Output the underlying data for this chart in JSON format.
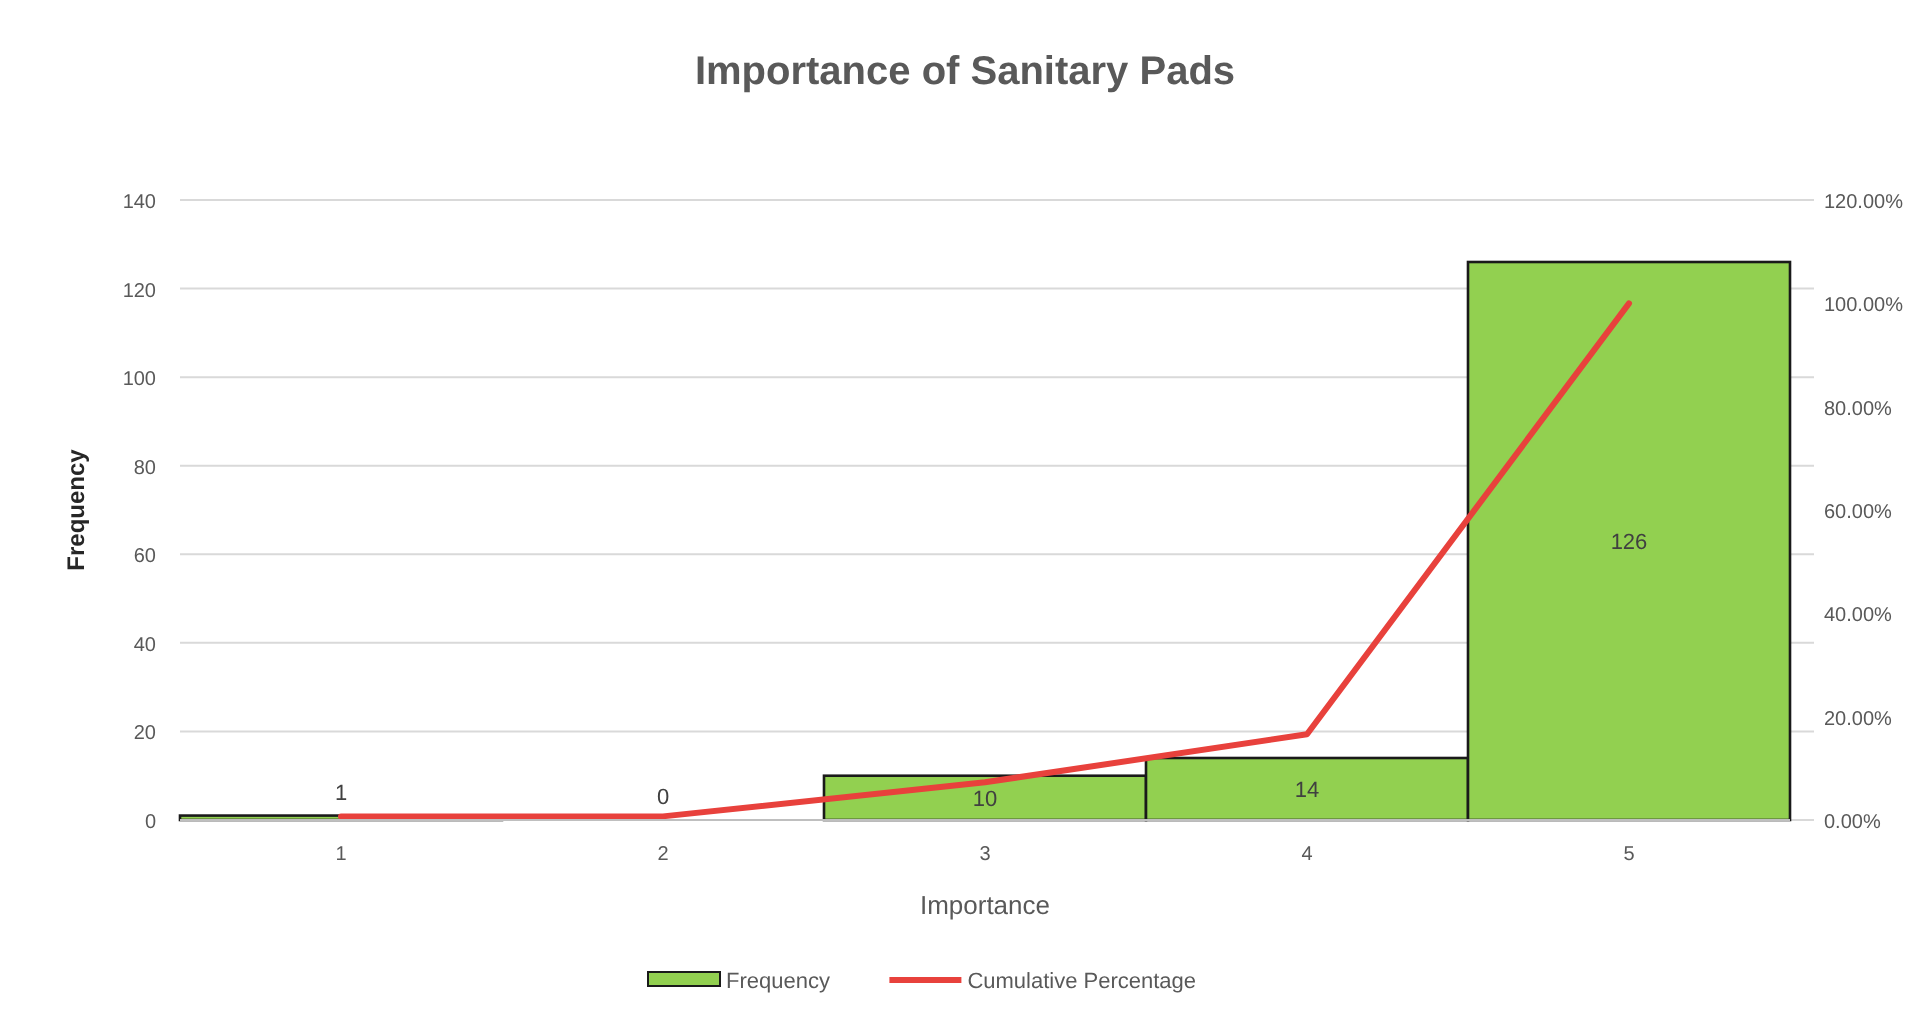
{
  "chart_data": {
    "type": "bar",
    "title": "Importance of Sanitary Pads",
    "xlabel": "Importance",
    "ylabel": "Frequency",
    "categories": [
      "1",
      "2",
      "3",
      "4",
      "5"
    ],
    "series": [
      {
        "name": "Frequency",
        "color": "#92d050",
        "values": [
          1,
          0,
          10,
          14,
          126
        ],
        "value_labels": [
          "1",
          "0",
          "10",
          "14",
          "126"
        ]
      },
      {
        "name": "Cumulative Percentage",
        "type": "line",
        "axis": "y2",
        "color": "#e8413c",
        "values": [
          0.7,
          0.7,
          7.3,
          16.6,
          100
        ]
      }
    ],
    "ylim": [
      0,
      140
    ],
    "yticks": [
      0,
      20,
      40,
      60,
      80,
      100,
      120,
      140
    ],
    "y2lim": [
      0,
      120
    ],
    "y2ticks": [
      {
        "value": 0,
        "label": "0.00%"
      },
      {
        "value": 20,
        "label": "20.00%"
      },
      {
        "value": 40,
        "label": "40.00%"
      },
      {
        "value": 60,
        "label": "60.00%"
      },
      {
        "value": 80,
        "label": "80.00%"
      },
      {
        "value": 100,
        "label": "100.00%"
      },
      {
        "value": 120,
        "label": "120.00%"
      }
    ],
    "grid": "y",
    "legend": "bottom",
    "marker": "none",
    "line_style": "solid"
  }
}
